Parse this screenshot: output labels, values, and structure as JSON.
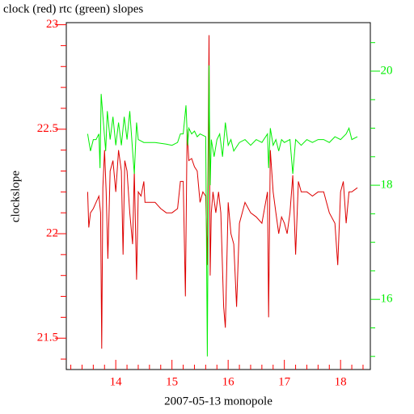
{
  "chart_data": {
    "type": "line",
    "title": "clock (red) rtc (green) slopes",
    "xlabel": "2007-05-13 monopole",
    "ylabel": "clockslope",
    "xlim": [
      13.12,
      18.53
    ],
    "xticks": [
      14,
      15,
      16,
      17,
      18
    ],
    "xminorticks": [
      13.2,
      13.4,
      13.6,
      13.8,
      14.2,
      14.4,
      14.6,
      14.8,
      15.2,
      15.4,
      15.6,
      15.8,
      16.2,
      16.4,
      16.6,
      16.8,
      17.2,
      17.4,
      17.6,
      17.8,
      18.2,
      18.4
    ],
    "ylim": [
      21.35,
      23.01
    ],
    "yticks": [
      21.5,
      22,
      22.5,
      23
    ],
    "yminorticks": [
      21.4,
      21.6,
      21.7,
      21.8,
      21.9,
      22.1,
      22.2,
      22.3,
      22.4,
      22.6,
      22.7,
      22.8,
      22.9
    ],
    "y2lim": [
      14.77,
      20.85
    ],
    "y2ticks": [
      16,
      18,
      20
    ],
    "y2minorticks": [
      15,
      15.5,
      16.5,
      17,
      17.5,
      18.5,
      19,
      19.5,
      20.5
    ],
    "axis_color": "#ff0000",
    "axis2_color": "#00ee00",
    "series": [
      {
        "color": "#dd0000",
        "x": [
          13.5,
          13.52,
          13.55,
          13.6,
          13.65,
          13.7,
          13.73,
          13.75,
          13.77,
          13.8,
          13.83,
          13.86,
          13.9,
          13.95,
          14.0,
          14.05,
          14.1,
          14.13,
          14.16,
          14.2,
          14.25,
          14.3,
          14.33,
          14.37,
          14.4,
          14.45,
          14.5,
          14.52,
          14.6,
          14.7,
          14.8,
          14.9,
          15.0,
          15.1,
          15.15,
          15.2,
          15.24,
          15.27,
          15.3,
          15.35,
          15.4,
          15.45,
          15.5,
          15.55,
          15.6,
          15.63,
          15.66,
          15.68,
          15.7,
          15.73,
          15.78,
          15.83,
          15.87,
          15.92,
          15.95,
          16.0,
          16.05,
          16.1,
          16.15,
          16.2,
          16.3,
          16.4,
          16.5,
          16.6,
          16.7,
          16.72,
          16.75,
          16.8,
          16.85,
          16.9,
          16.95,
          17.0,
          17.05,
          17.1,
          17.15,
          17.2,
          17.25,
          17.3,
          17.4,
          17.5,
          17.6,
          17.7,
          17.8,
          17.9,
          17.95,
          18.0,
          18.05,
          18.1,
          18.15,
          18.2,
          18.3
        ],
        "values": [
          22.2,
          22.03,
          22.1,
          22.12,
          22.15,
          22.18,
          22.1,
          21.45,
          22.22,
          22.4,
          22.2,
          21.88,
          22.3,
          22.35,
          22.2,
          22.4,
          22.3,
          21.9,
          22.35,
          22.3,
          22.1,
          21.95,
          22.3,
          21.78,
          22.2,
          22.18,
          22.25,
          22.15,
          22.15,
          22.15,
          22.12,
          22.1,
          22.1,
          22.12,
          22.25,
          22.25,
          21.7,
          22.5,
          22.35,
          22.36,
          22.32,
          22.3,
          22.15,
          22.2,
          22.18,
          21.85,
          22.95,
          21.8,
          22.1,
          22.2,
          22.1,
          22.2,
          22.1,
          21.65,
          21.55,
          22.15,
          22.0,
          21.95,
          21.65,
          22.05,
          22.15,
          22.1,
          22.08,
          22.05,
          22.2,
          21.6,
          22.4,
          22.2,
          22.1,
          22.0,
          22.08,
          22.05,
          22.0,
          22.1,
          22.28,
          21.9,
          22.25,
          22.2,
          22.2,
          22.18,
          22.2,
          22.2,
          22.1,
          22.05,
          21.85,
          22.2,
          22.25,
          22.05,
          22.2,
          22.2,
          22.22
        ]
      },
      {
        "color": "#00ee00",
        "axis": "y2",
        "x": [
          13.5,
          13.55,
          13.6,
          13.65,
          13.7,
          13.72,
          13.74,
          13.78,
          13.82,
          13.85,
          13.9,
          13.95,
          14.0,
          14.05,
          14.1,
          14.15,
          14.2,
          14.25,
          14.3,
          14.33,
          14.37,
          14.4,
          14.5,
          14.7,
          14.9,
          15.0,
          15.1,
          15.15,
          15.2,
          15.25,
          15.28,
          15.3,
          15.35,
          15.4,
          15.45,
          15.5,
          15.6,
          15.63,
          15.66,
          15.68,
          15.7,
          15.75,
          15.8,
          15.85,
          15.9,
          15.95,
          16.0,
          16.05,
          16.1,
          16.2,
          16.3,
          16.4,
          16.5,
          16.6,
          16.7,
          16.72,
          16.75,
          16.8,
          16.85,
          16.9,
          16.95,
          17.0,
          17.1,
          17.15,
          17.2,
          17.3,
          17.4,
          17.5,
          17.6,
          17.7,
          17.8,
          17.9,
          18.0,
          18.1,
          18.15,
          18.2,
          18.3
        ],
        "values": [
          18.9,
          18.6,
          18.8,
          18.8,
          18.9,
          18.3,
          19.6,
          19.1,
          18.6,
          19.3,
          18.8,
          19.2,
          18.7,
          19.1,
          18.7,
          19.2,
          18.8,
          19.3,
          18.6,
          18.2,
          19.1,
          18.8,
          18.75,
          18.75,
          18.72,
          18.7,
          18.75,
          18.9,
          18.9,
          19.4,
          18.7,
          19.0,
          18.9,
          18.95,
          18.85,
          18.9,
          18.85,
          15.0,
          20.1,
          18.0,
          18.8,
          18.5,
          18.8,
          18.9,
          18.5,
          19.1,
          18.7,
          18.8,
          18.6,
          18.75,
          18.8,
          18.7,
          18.8,
          18.75,
          18.9,
          18.3,
          19.0,
          18.7,
          18.8,
          18.6,
          18.8,
          18.75,
          18.8,
          18.2,
          18.8,
          18.7,
          18.8,
          18.75,
          18.8,
          18.8,
          18.75,
          18.85,
          18.8,
          18.9,
          19.0,
          18.8,
          18.85
        ]
      }
    ]
  }
}
